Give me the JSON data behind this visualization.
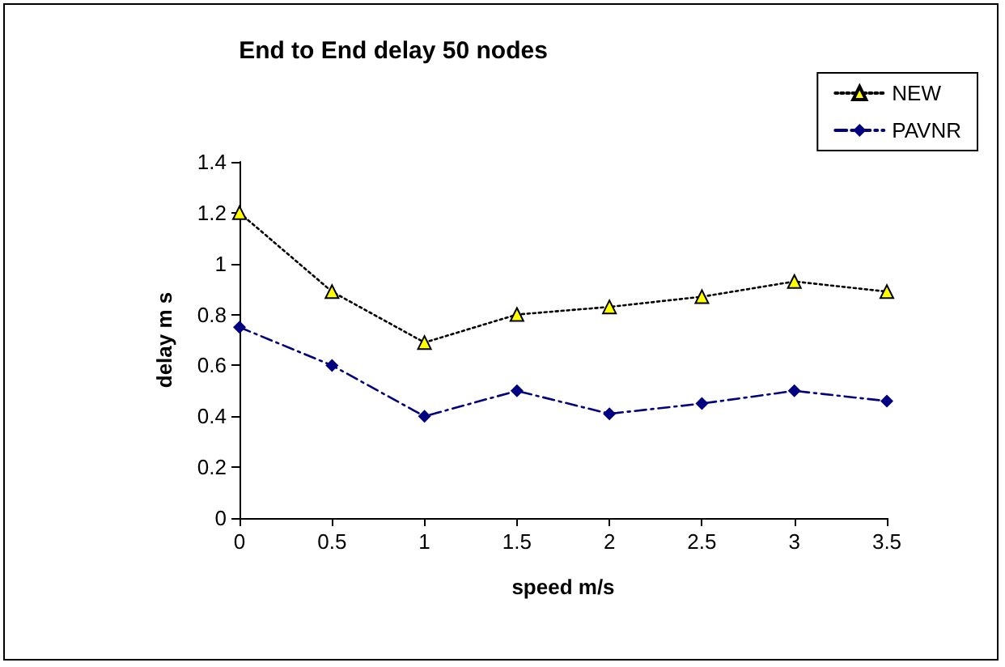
{
  "chart_data": {
    "type": "line",
    "title": "End to End delay 50 nodes",
    "xlabel": "speed m/s",
    "ylabel": "delay m s",
    "categories": [
      "0",
      "0.5",
      "1",
      "1.5",
      "2",
      "2.5",
      "3",
      "3.5"
    ],
    "series": [
      {
        "name": "NEW",
        "color": "#000000",
        "marker": "triangle",
        "line_style": "dotted",
        "values": [
          1.2,
          0.89,
          0.69,
          0.8,
          0.83,
          0.87,
          0.93,
          0.89
        ]
      },
      {
        "name": "PAVNR",
        "color": "#000080",
        "marker": "diamond",
        "line_style": "dashdot",
        "values": [
          0.75,
          0.6,
          0.4,
          0.5,
          0.41,
          0.45,
          0.5,
          0.46
        ]
      }
    ],
    "ylim": [
      0,
      1.4
    ],
    "yticks": [
      0,
      0.2,
      0.4,
      0.6,
      0.8,
      1,
      1.2,
      1.4
    ],
    "grid": false,
    "legend": "top right"
  }
}
